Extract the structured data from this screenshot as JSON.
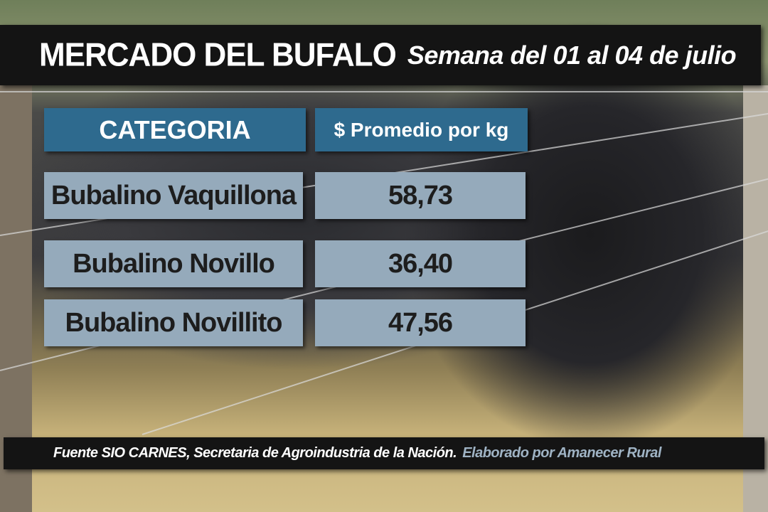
{
  "title": {
    "main": "MERCADO DEL BUFALO",
    "subtitle": "Semana del 01 al 04 de julio"
  },
  "table": {
    "headers": [
      "CATEGORIA",
      "$ Promedio por kg"
    ],
    "rows": [
      {
        "category": "Bubalino Vaquillona",
        "price": "58,73"
      },
      {
        "category": "Bubalino Novillo",
        "price": "36,40"
      },
      {
        "category": "Bubalino Novillito",
        "price": "47,56"
      }
    ]
  },
  "footer": {
    "source": "Fuente SIO CARNES, Secretaria de Agroindustria de la Nación.",
    "credit": "Elaborado por  Amanecer Rural"
  },
  "colors": {
    "header_bg": "#2e6a8e",
    "row_bg": "#95aabb",
    "bar_bg": "#141414",
    "credit_text": "#9fb3c4"
  }
}
